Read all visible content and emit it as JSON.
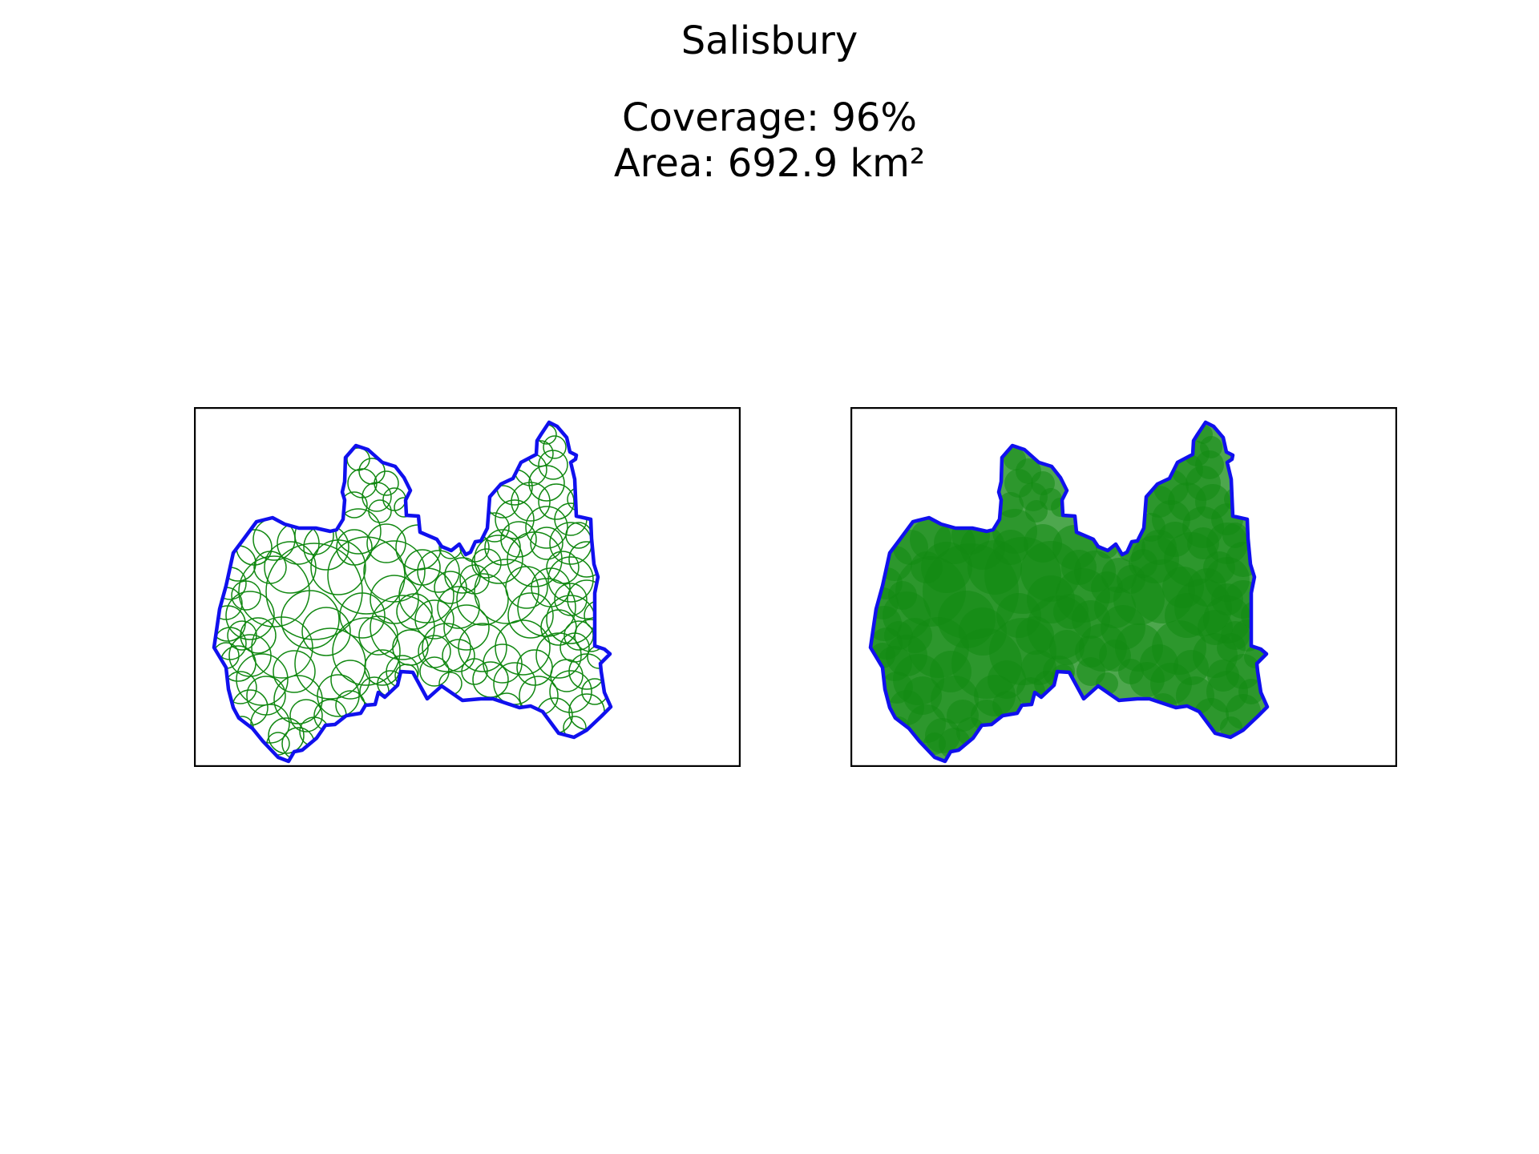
{
  "figure": {
    "title": "Salisbury",
    "coverage_text": "Coverage: 96%",
    "area_text": "Area: 692.9 km²"
  },
  "map_data": {
    "region_name": "Salisbury",
    "coverage_percent": 96,
    "area_km2": 692.9,
    "panels": [
      {
        "name": "circle-outlines",
        "circle_style": "outline"
      },
      {
        "name": "circle-fills",
        "circle_style": "filled, semi-transparent"
      }
    ],
    "colors": {
      "boundary": "#1010ee",
      "circle_outline": "#118811",
      "circle_fill": "#138a13",
      "frame": "#000000",
      "background": "#ffffff"
    }
  }
}
